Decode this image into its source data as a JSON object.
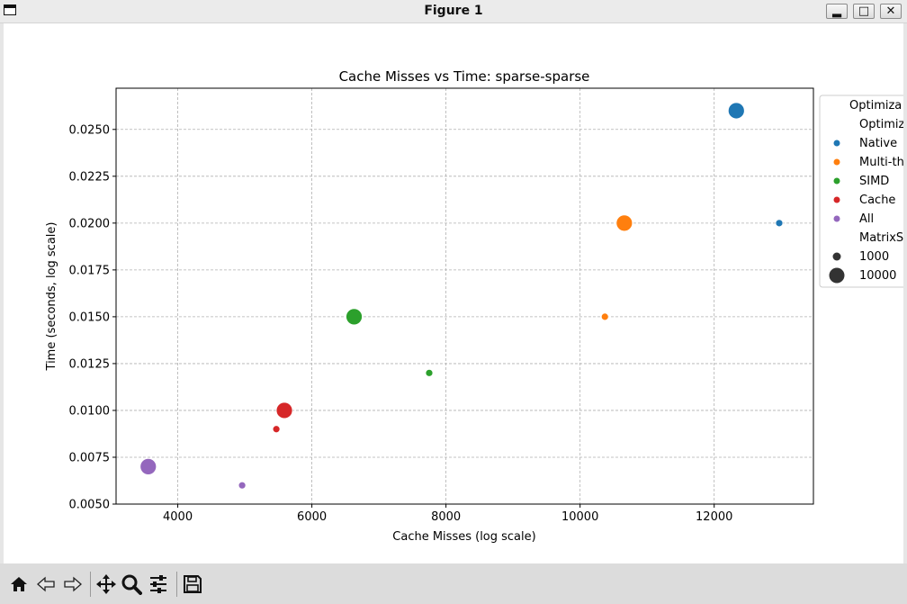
{
  "window": {
    "title": "Figure 1",
    "controls": [
      "minimize",
      "maximize",
      "close"
    ]
  },
  "toolbar": {
    "buttons": [
      {
        "name": "home",
        "icon": "home-icon"
      },
      {
        "name": "back",
        "icon": "back-arrow-icon"
      },
      {
        "name": "forward",
        "icon": "forward-arrow-icon"
      },
      {
        "name": "pan",
        "icon": "move-icon"
      },
      {
        "name": "zoom",
        "icon": "magnifier-icon"
      },
      {
        "name": "configure-subplots",
        "icon": "sliders-icon"
      },
      {
        "name": "save",
        "icon": "floppy-disk-icon"
      }
    ]
  },
  "chart_data": {
    "type": "scatter",
    "title": "Cache Misses vs Time: sparse-sparse",
    "xlabel": "Cache Misses (log scale)",
    "ylabel": "Time (seconds, log scale)",
    "xlim": [
      3080,
      13480
    ],
    "ylim": [
      0.005,
      0.0272
    ],
    "xticks": [
      4000,
      6000,
      8000,
      10000,
      12000
    ],
    "xtick_labels": [
      "4000",
      "6000",
      "8000",
      "10000",
      "12000"
    ],
    "yticks": [
      0.005,
      0.0075,
      0.01,
      0.0125,
      0.015,
      0.0175,
      0.02,
      0.0225,
      0.025
    ],
    "ytick_labels": [
      "0.0050",
      "0.0075",
      "0.0100",
      "0.0125",
      "0.0150",
      "0.0175",
      "0.0200",
      "0.0225",
      "0.0250"
    ],
    "grid": true,
    "grid_style": "dashed",
    "legend_placement": "outside-right",
    "legend": {
      "title": "Optimiza",
      "hue_heading": "Optimiz",
      "size_heading": "MatrixS",
      "hue_entries": [
        {
          "label": "Native",
          "color": "#1f77b4"
        },
        {
          "label": "Multi-th",
          "color": "#ff7f0e"
        },
        {
          "label": "SIMD",
          "color": "#2ca02c"
        },
        {
          "label": "Cache",
          "color": "#d62728"
        },
        {
          "label": "All",
          "color": "#9467bd"
        }
      ],
      "size_entries": [
        {
          "label": "1000",
          "size": 1000
        },
        {
          "label": "10000",
          "size": 10000
        }
      ]
    },
    "series": [
      {
        "color": "#1f77b4",
        "points": [
          {
            "x": 12970,
            "y": 0.02,
            "size": 1000
          },
          {
            "x": 12330,
            "y": 0.026,
            "size": 10000
          }
        ]
      },
      {
        "color": "#ff7f0e",
        "points": [
          {
            "x": 10370,
            "y": 0.015,
            "size": 1000
          },
          {
            "x": 10660,
            "y": 0.02,
            "size": 10000
          }
        ]
      },
      {
        "color": "#2ca02c",
        "points": [
          {
            "x": 7750,
            "y": 0.012,
            "size": 1000
          },
          {
            "x": 6630,
            "y": 0.015,
            "size": 10000
          }
        ]
      },
      {
        "color": "#d62728",
        "points": [
          {
            "x": 5470,
            "y": 0.009,
            "size": 1000
          },
          {
            "x": 5590,
            "y": 0.01,
            "size": 10000
          }
        ]
      },
      {
        "color": "#9467bd",
        "points": [
          {
            "x": 4960,
            "y": 0.006,
            "size": 1000
          },
          {
            "x": 3560,
            "y": 0.007,
            "size": 10000
          }
        ]
      }
    ]
  }
}
